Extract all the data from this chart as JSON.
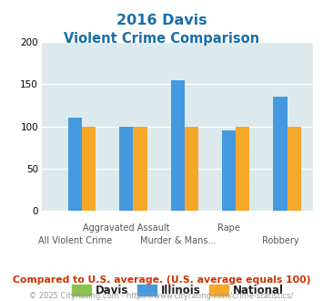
{
  "title_line1": "2016 Davis",
  "title_line2": "Violent Crime Comparison",
  "groups": [
    {
      "davis": 0,
      "illinois": 110,
      "national": 100
    },
    {
      "davis": 0,
      "illinois": 100,
      "national": 100
    },
    {
      "davis": 0,
      "illinois": 155,
      "national": 100
    },
    {
      "davis": 0,
      "illinois": 95,
      "national": 100
    },
    {
      "davis": 0,
      "illinois": 135,
      "national": 100
    }
  ],
  "xtick_top": [
    "",
    "Aggravated Assault",
    "",
    "Rape",
    ""
  ],
  "xtick_bottom": [
    "All Violent Crime",
    "",
    "Murder & Mans...",
    "",
    "Robbery"
  ],
  "davis_color": "#8bc34a",
  "illinois_color": "#4499e0",
  "national_color": "#f5a82a",
  "plot_bg": "#ddeaed",
  "ylim": [
    0,
    200
  ],
  "yticks": [
    0,
    50,
    100,
    150,
    200
  ],
  "legend_labels": [
    "Davis",
    "Illinois",
    "National"
  ],
  "footnote": "Compared to U.S. average. (U.S. average equals 100)",
  "copyright": "© 2025 CityRating.com - https://www.cityrating.com/crime-statistics/",
  "title_color": "#1a6ea8",
  "footnote_color": "#cc3300",
  "copyright_color": "#999999",
  "url_color": "#3366cc"
}
